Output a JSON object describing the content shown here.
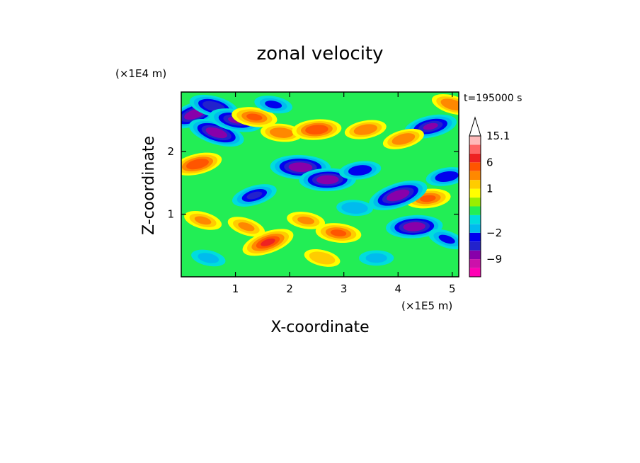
{
  "chart_data": {
    "type": "heatmap",
    "title": "zonal velocity",
    "xlabel": "X-coordinate",
    "ylabel": "Z-coordinate",
    "x_scale_label": "(×1E5 m)",
    "y_scale_label": "(×1E4 m)",
    "x_range": [
      0,
      5.12
    ],
    "y_range": [
      0,
      2.95
    ],
    "x_ticks": [
      "1",
      "2",
      "3",
      "4",
      "5"
    ],
    "y_ticks": [
      "1",
      "2"
    ],
    "time_label": "t=195000 s",
    "colorbar": {
      "labels": [
        "15.1",
        "6",
        "1",
        "−2",
        "−9"
      ],
      "label_values": [
        15.1,
        6,
        1,
        -2,
        -9
      ],
      "levels": [
        {
          "color": "#ff00b4",
          "lower": -16,
          "upper": -12
        },
        {
          "color": "#cc11aa",
          "lower": -12,
          "upper": -9
        },
        {
          "color": "#8800aa",
          "lower": -9,
          "upper": -6
        },
        {
          "color": "#2222cc",
          "lower": -6,
          "upper": -4
        },
        {
          "color": "#0000ee",
          "lower": -4,
          "upper": -2
        },
        {
          "color": "#00bbee",
          "lower": -2,
          "upper": -1
        },
        {
          "color": "#00dddd",
          "lower": -1,
          "upper": -0.5
        },
        {
          "color": "#22ee55",
          "lower": -0.5,
          "upper": 0
        },
        {
          "color": "#99ee00",
          "lower": 0,
          "upper": 0.5
        },
        {
          "color": "#ffff00",
          "lower": 0.5,
          "upper": 1
        },
        {
          "color": "#ffcc00",
          "lower": 1,
          "upper": 2
        },
        {
          "color": "#ff8800",
          "lower": 2,
          "upper": 4
        },
        {
          "color": "#ff5500",
          "lower": 4,
          "upper": 6
        },
        {
          "color": "#ee2222",
          "lower": 6,
          "upper": 9
        },
        {
          "color": "#ff6666",
          "lower": 9,
          "upper": 12
        },
        {
          "color": "#ffbbbb",
          "lower": 12,
          "upper": 15.1
        }
      ]
    },
    "features": [
      {
        "x": 0.25,
        "z": 2.6,
        "u": -7
      },
      {
        "x": 0.65,
        "z": 2.3,
        "u": -7
      },
      {
        "x": 0.6,
        "z": 2.72,
        "u": -5
      },
      {
        "x": 1.0,
        "z": 2.5,
        "u": -6
      },
      {
        "x": 1.35,
        "z": 2.55,
        "u": 4
      },
      {
        "x": 1.85,
        "z": 2.3,
        "u": 3
      },
      {
        "x": 2.2,
        "z": 1.75,
        "u": -8
      },
      {
        "x": 2.7,
        "z": 1.55,
        "u": -7
      },
      {
        "x": 2.5,
        "z": 2.35,
        "u": 5
      },
      {
        "x": 3.3,
        "z": 1.7,
        "u": -3
      },
      {
        "x": 3.4,
        "z": 2.35,
        "u": 3
      },
      {
        "x": 0.3,
        "z": 1.8,
        "u": 5
      },
      {
        "x": 1.35,
        "z": 1.3,
        "u": -4
      },
      {
        "x": 1.6,
        "z": 0.55,
        "u": 6
      },
      {
        "x": 1.2,
        "z": 0.8,
        "u": 2
      },
      {
        "x": 0.4,
        "z": 0.9,
        "u": 2
      },
      {
        "x": 0.5,
        "z": 0.3,
        "u": -1
      },
      {
        "x": 2.3,
        "z": 0.9,
        "u": 2
      },
      {
        "x": 2.9,
        "z": 0.7,
        "u": 4
      },
      {
        "x": 3.2,
        "z": 1.1,
        "u": -1.5
      },
      {
        "x": 3.6,
        "z": 0.3,
        "u": -1
      },
      {
        "x": 4.3,
        "z": 0.8,
        "u": -7
      },
      {
        "x": 4.55,
        "z": 1.25,
        "u": 4
      },
      {
        "x": 4.9,
        "z": 1.6,
        "u": -3
      },
      {
        "x": 4.6,
        "z": 2.4,
        "u": -6
      },
      {
        "x": 4.1,
        "z": 2.2,
        "u": 3
      },
      {
        "x": 4.0,
        "z": 1.3,
        "u": -8
      },
      {
        "x": 4.9,
        "z": 0.6,
        "u": -2
      },
      {
        "x": 5.0,
        "z": 2.75,
        "u": 3
      },
      {
        "x": 2.6,
        "z": 0.3,
        "u": 1.5
      },
      {
        "x": 1.7,
        "z": 2.75,
        "u": -2
      }
    ]
  }
}
